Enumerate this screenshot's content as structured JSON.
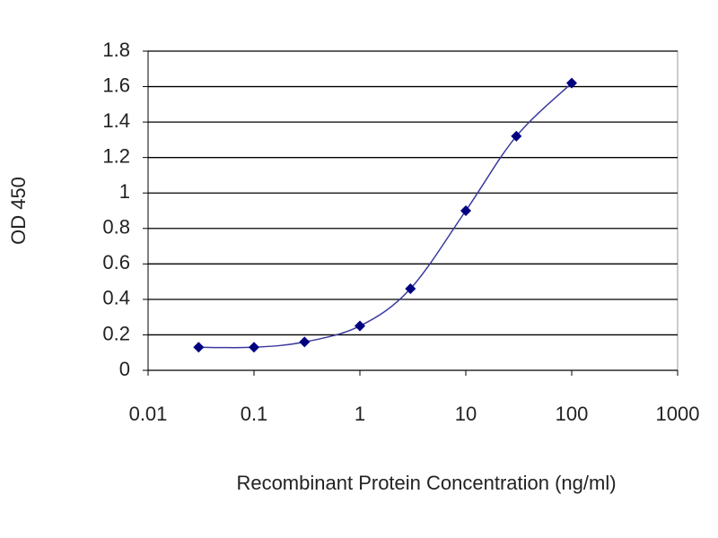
{
  "chart_data": {
    "type": "scatter",
    "x_label": "Recombinant Protein Concentration (ng/ml)",
    "y_label": "OD 450",
    "x": [
      0.03,
      0.1,
      0.3,
      1,
      3,
      10,
      30,
      100
    ],
    "series": [
      {
        "color": "#000080",
        "line_color": "#3a3aa0",
        "values": [
          0.13,
          0.13,
          0.16,
          0.25,
          0.46,
          0.9,
          1.32,
          1.62
        ]
      }
    ],
    "x_log": true,
    "xlim": [
      0.01,
      1000
    ],
    "xticks": [
      0.01,
      0.1,
      1,
      10,
      100,
      1000
    ],
    "ylim": [
      0,
      1.8
    ],
    "yticks": [
      0,
      0.2,
      0.4,
      0.6,
      0.8,
      1,
      1.2,
      1.4,
      1.6,
      1.8
    ],
    "grid": true
  }
}
